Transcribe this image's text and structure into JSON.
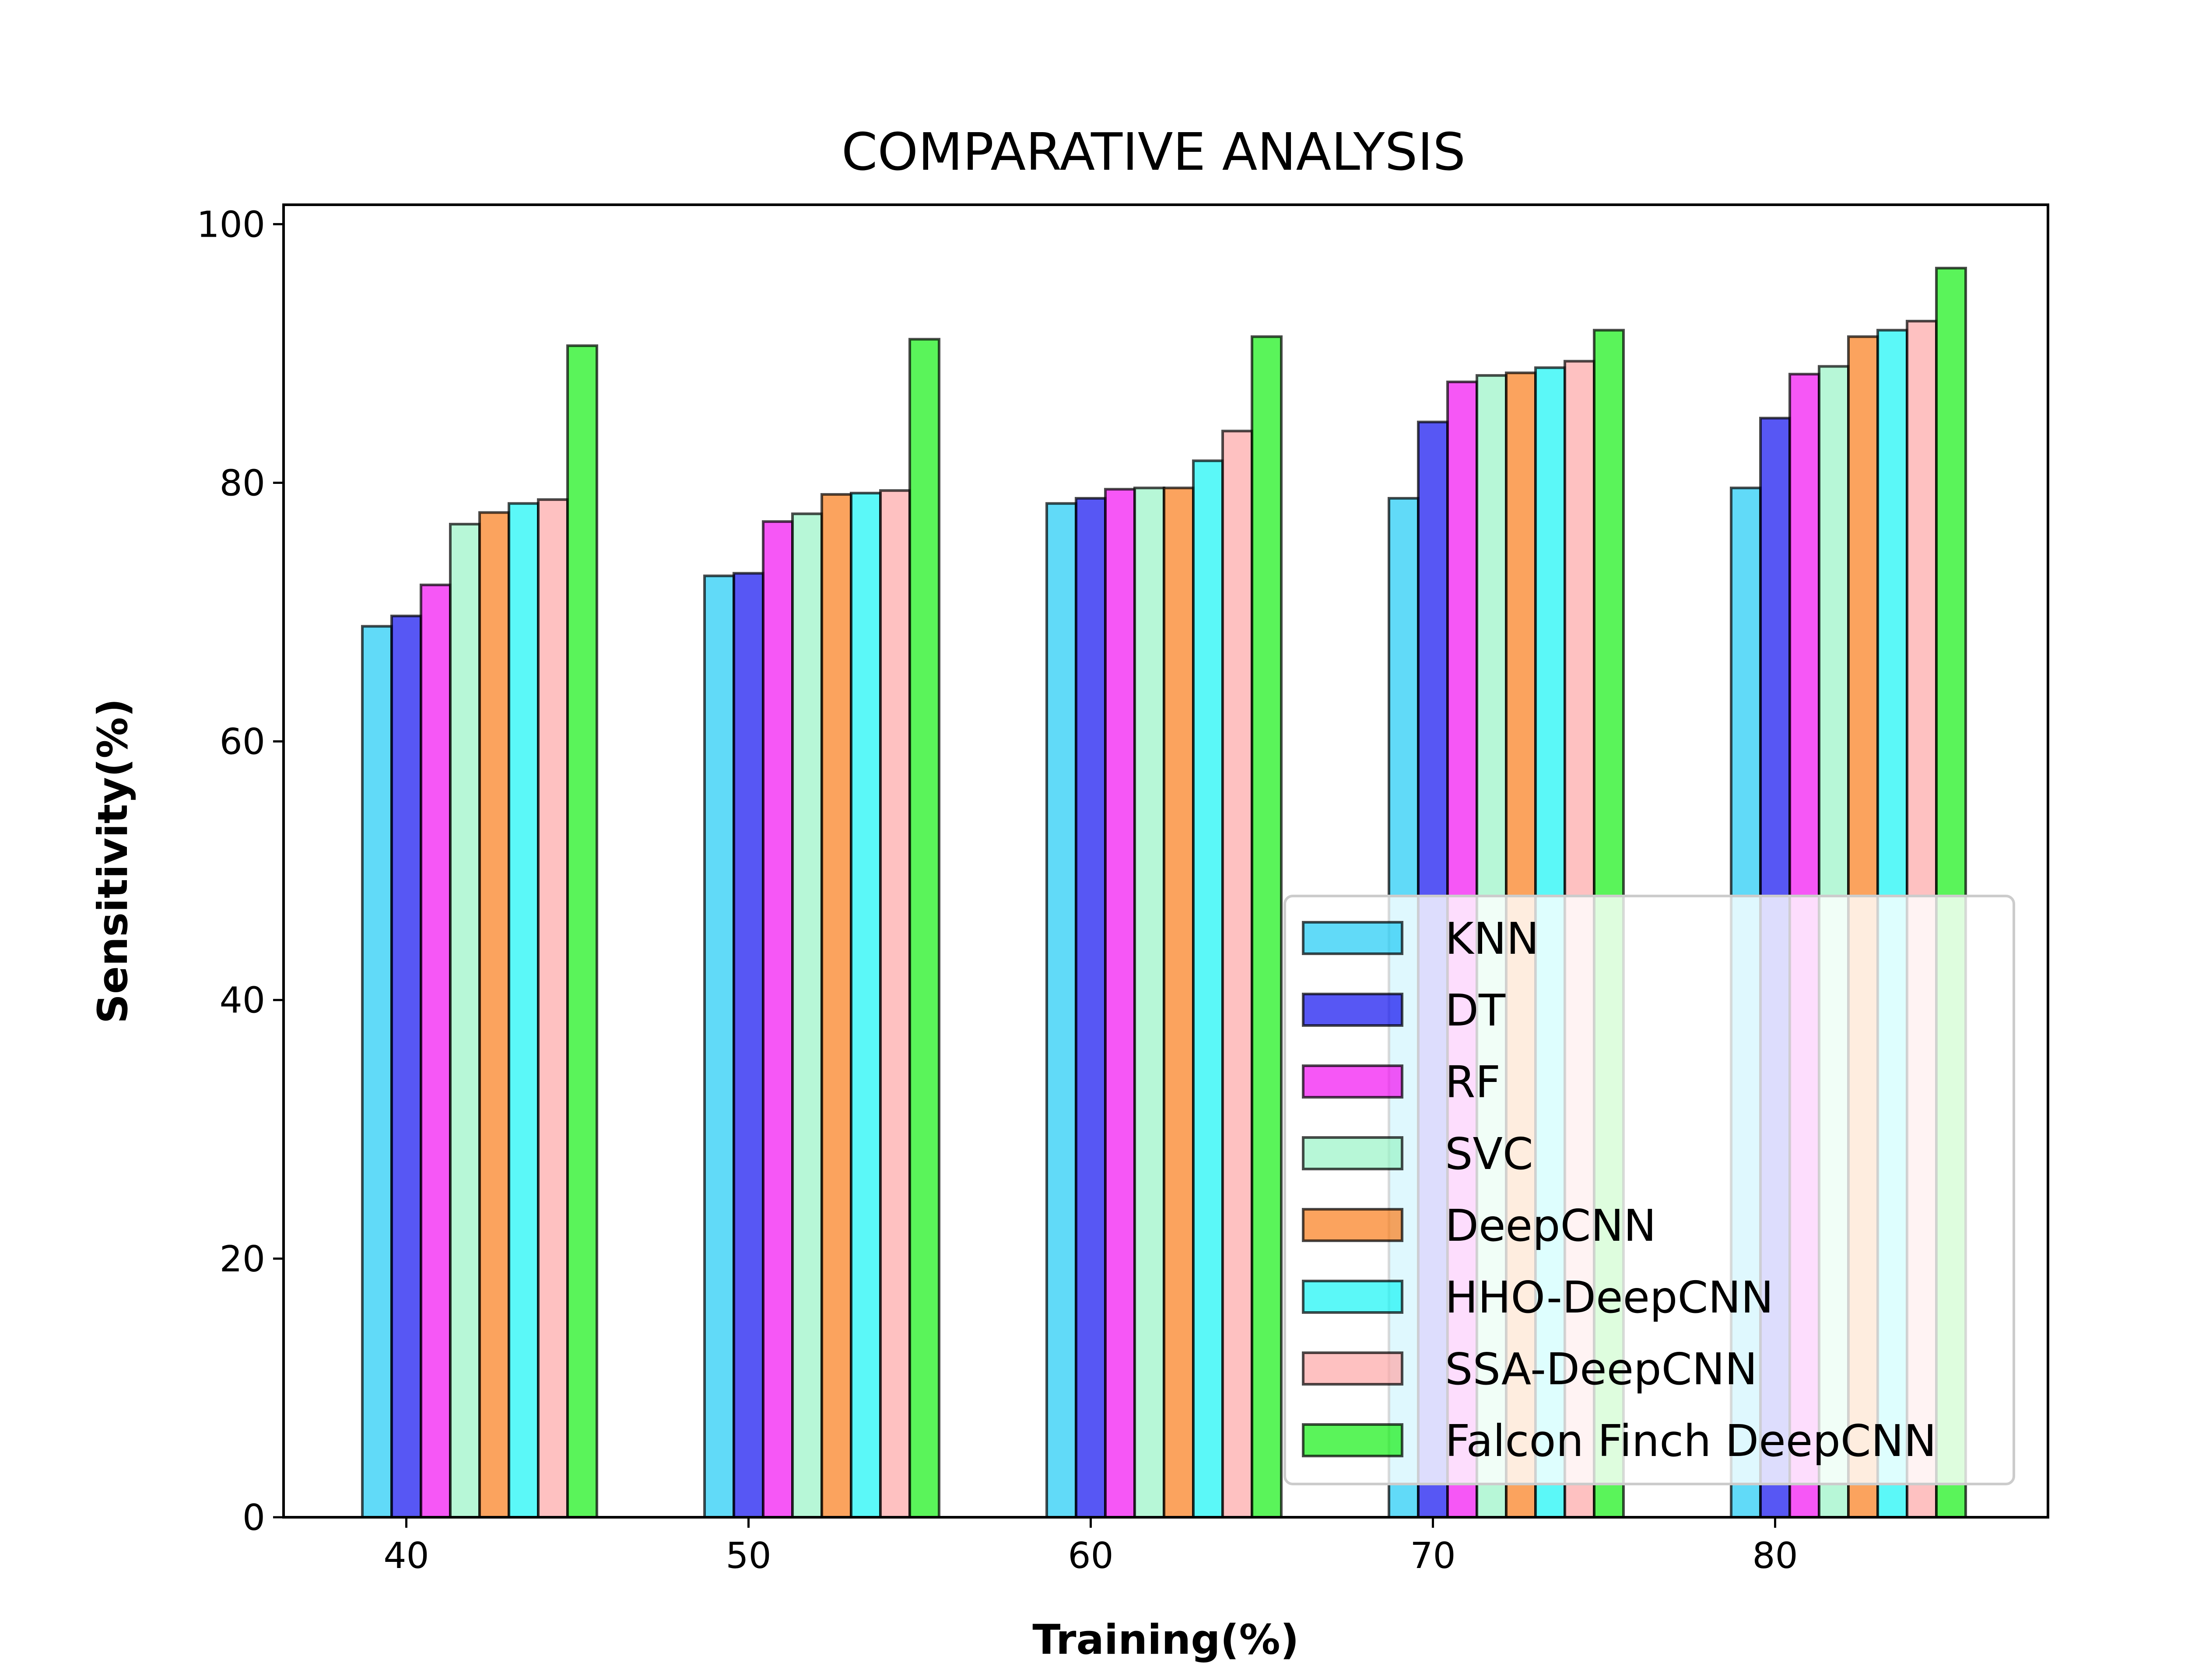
{
  "chart_data": {
    "type": "bar",
    "title": "COMPARATIVE ANALYSIS",
    "xlabel": "Training(%)",
    "ylabel": "Sensitivity(%)",
    "categories": [
      "40",
      "50",
      "60",
      "70",
      "80"
    ],
    "ylim": [
      0,
      101.5
    ],
    "yticks": [
      "0",
      "20",
      "40",
      "60",
      "80",
      "100"
    ],
    "grid": false,
    "legend_position": "lower-right",
    "series": [
      {
        "name": "KNN",
        "color": "#1ecbf5",
        "values": [
          68.9,
          72.8,
          78.4,
          78.8,
          79.6
        ]
      },
      {
        "name": "DT",
        "color": "#1010f0",
        "values": [
          69.7,
          73.0,
          78.8,
          84.7,
          85.0
        ]
      },
      {
        "name": "RF",
        "color": "#f20ff2",
        "values": [
          72.1,
          77.0,
          79.5,
          87.8,
          88.4
        ]
      },
      {
        "name": "SVC",
        "color": "#98f4c6",
        "values": [
          76.8,
          77.6,
          79.6,
          88.3,
          89.0
        ]
      },
      {
        "name": "DeepCNN",
        "color": "#fa7c1a",
        "values": [
          77.7,
          79.1,
          79.6,
          88.5,
          91.3
        ]
      },
      {
        "name": "HHO-DeepCNN",
        "color": "#16f5f5",
        "values": [
          78.4,
          79.2,
          81.7,
          88.9,
          91.8
        ]
      },
      {
        "name": "SSA-DeepCNN",
        "color": "#fda7a7",
        "values": [
          78.7,
          79.4,
          84.0,
          89.4,
          92.5
        ]
      },
      {
        "name": "Falcon Finch DeepCNN",
        "color": "#14f014",
        "values": [
          90.6,
          91.1,
          91.3,
          91.8,
          96.6
        ]
      }
    ]
  }
}
